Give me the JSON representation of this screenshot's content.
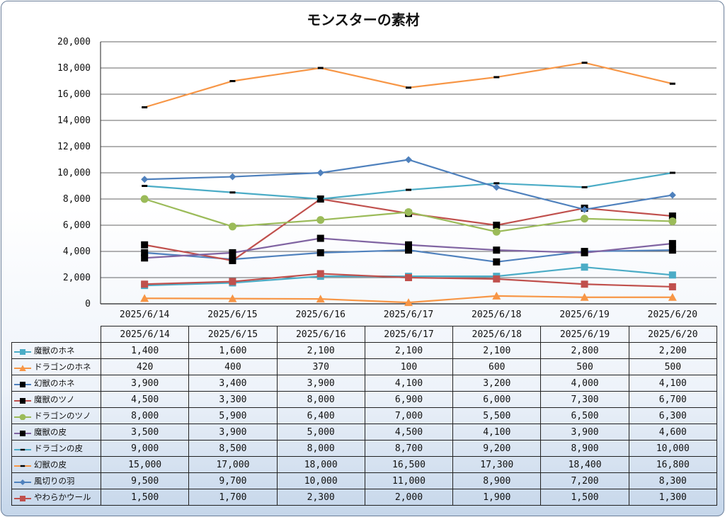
{
  "chart_data": {
    "type": "line",
    "title": "モンスターの素材",
    "categories": [
      "2025/6/14",
      "2025/6/15",
      "2025/6/16",
      "2025/6/17",
      "2025/6/18",
      "2025/6/19",
      "2025/6/20"
    ],
    "ylim": [
      0,
      20000
    ],
    "yticks": [
      "0",
      "2,000",
      "4,000",
      "6,000",
      "8,000",
      "10,000",
      "12,000",
      "14,000",
      "16,000",
      "18,000",
      "20,000"
    ],
    "grid": true,
    "legend": "data-table",
    "series": [
      {
        "name": "魔獣のホネ",
        "color": "#4bacc6",
        "marker": "square",
        "values": [
          1400,
          1600,
          2100,
          2100,
          2100,
          2800,
          2200
        ],
        "labels": [
          "1,400",
          "1,600",
          "2,100",
          "2,100",
          "2,100",
          "2,800",
          "2,200"
        ]
      },
      {
        "name": "ドラゴンのホネ",
        "color": "#f79646",
        "marker": "triangle",
        "values": [
          420,
          400,
          370,
          100,
          600,
          500,
          500
        ],
        "labels": [
          "420",
          "400",
          "370",
          "100",
          "600",
          "500",
          "500"
        ]
      },
      {
        "name": "幻獣のホネ",
        "color": "#4f81bd",
        "marker": "blacksquare",
        "values": [
          3900,
          3400,
          3900,
          4100,
          3200,
          4000,
          4100
        ],
        "labels": [
          "3,900",
          "3,400",
          "3,900",
          "4,100",
          "3,200",
          "4,000",
          "4,100"
        ]
      },
      {
        "name": "魔獣のツノ",
        "color": "#c0504d",
        "marker": "blacksquare",
        "values": [
          4500,
          3300,
          8000,
          6900,
          6000,
          7300,
          6700
        ],
        "labels": [
          "4,500",
          "3,300",
          "8,000",
          "6,900",
          "6,000",
          "7,300",
          "6,700"
        ]
      },
      {
        "name": "ドラゴンのツノ",
        "color": "#9bbb59",
        "marker": "circle",
        "values": [
          8000,
          5900,
          6400,
          7000,
          5500,
          6500,
          6300
        ],
        "labels": [
          "8,000",
          "5,900",
          "6,400",
          "7,000",
          "5,500",
          "6,500",
          "6,300"
        ]
      },
      {
        "name": "魔獣の皮",
        "color": "#8064a2",
        "marker": "blacksquare",
        "values": [
          3500,
          3900,
          5000,
          4500,
          4100,
          3900,
          4600
        ],
        "labels": [
          "3,500",
          "3,900",
          "5,000",
          "4,500",
          "4,100",
          "3,900",
          "4,600"
        ]
      },
      {
        "name": "ドラゴンの皮",
        "color": "#4bacc6",
        "marker": "dash",
        "values": [
          9000,
          8500,
          8000,
          8700,
          9200,
          8900,
          10000
        ],
        "labels": [
          "9,000",
          "8,500",
          "8,000",
          "8,700",
          "9,200",
          "8,900",
          "10,000"
        ]
      },
      {
        "name": "幻獣の皮",
        "color": "#f79646",
        "marker": "dash",
        "values": [
          15000,
          17000,
          18000,
          16500,
          17300,
          18400,
          16800
        ],
        "labels": [
          "15,000",
          "17,000",
          "18,000",
          "16,500",
          "17,300",
          "18,400",
          "16,800"
        ]
      },
      {
        "name": "風切りの羽",
        "color": "#4f81bd",
        "marker": "diamond",
        "values": [
          9500,
          9700,
          10000,
          11000,
          8900,
          7200,
          8300
        ],
        "labels": [
          "9,500",
          "9,700",
          "10,000",
          "11,000",
          "8,900",
          "7,200",
          "8,300"
        ]
      },
      {
        "name": "やわらかウール",
        "color": "#c0504d",
        "marker": "square",
        "values": [
          1500,
          1700,
          2300,
          2000,
          1900,
          1500,
          1300
        ],
        "labels": [
          "1,500",
          "1,700",
          "2,300",
          "2,000",
          "1,900",
          "1,500",
          "1,300"
        ]
      }
    ]
  }
}
